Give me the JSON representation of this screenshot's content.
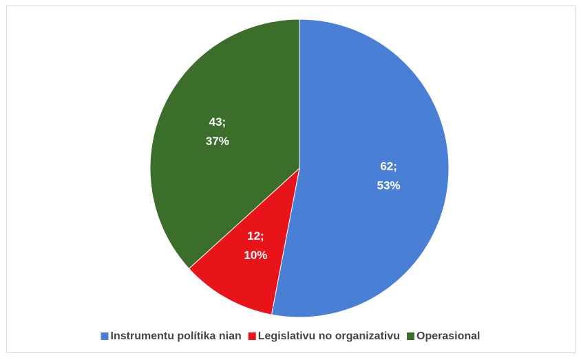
{
  "chart_data": {
    "type": "pie",
    "categories": [
      "Instrumentu polítika nian",
      "Legislativu no organizativu",
      "Operasional"
    ],
    "values": [
      62,
      12,
      43
    ],
    "value_labels": [
      "62;",
      "12;",
      "43;"
    ],
    "percent_labels": [
      "53%",
      "10%",
      "37%"
    ],
    "colors": [
      "#4a7fd6",
      "#e8141a",
      "#3b6e2a"
    ],
    "legend": "bottom"
  }
}
